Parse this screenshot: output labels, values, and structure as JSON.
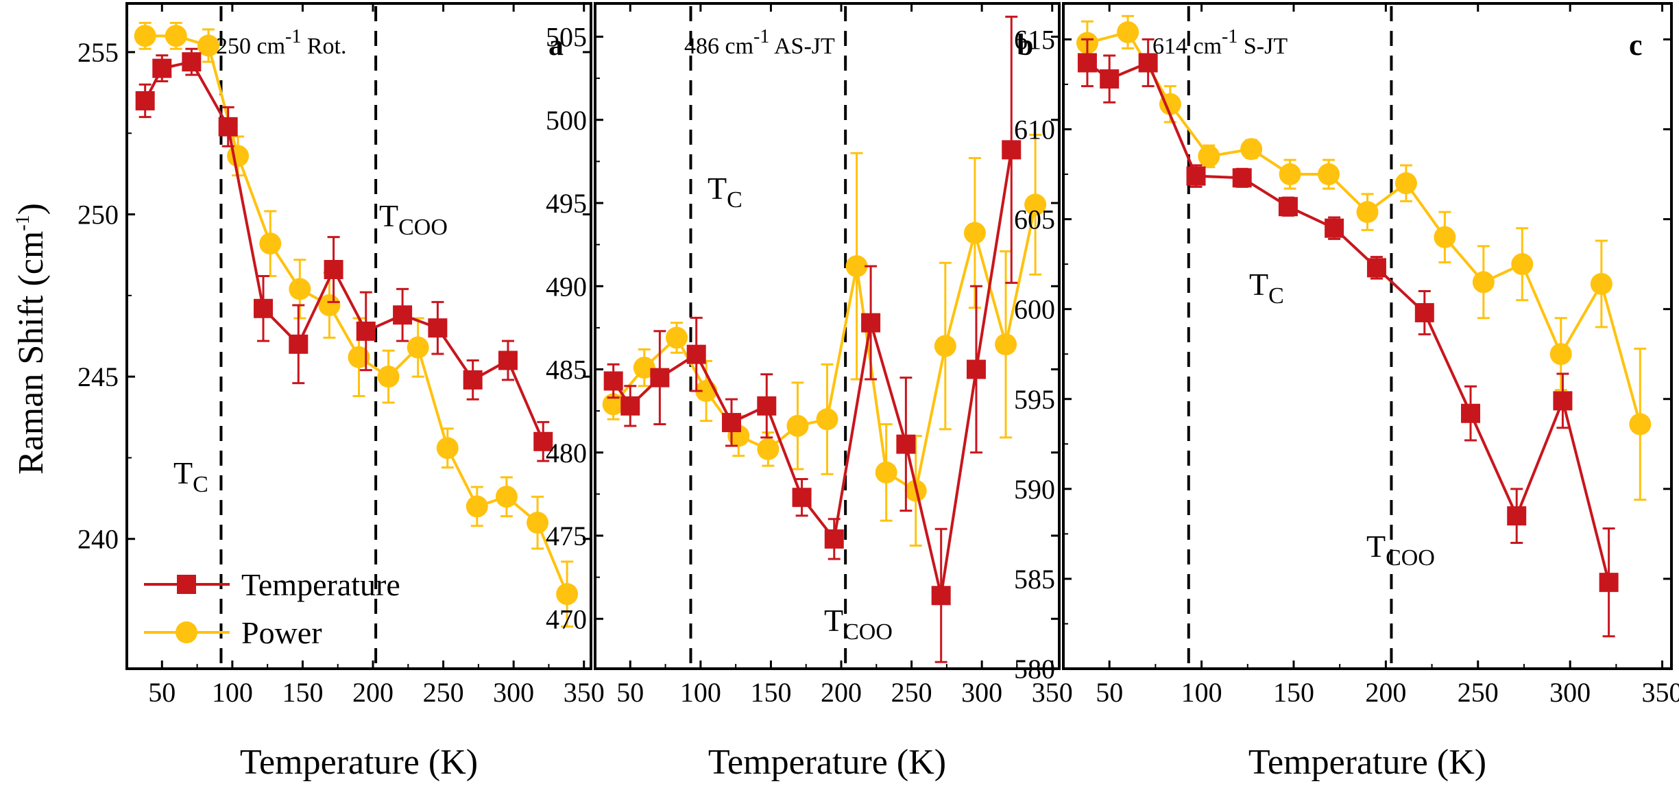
{
  "figure": {
    "ylabel": "Raman Shift (cm",
    "ylabel_sup": "-1",
    "ylabel_close": ")",
    "legend": {
      "temperature": "Temperature",
      "power": "Power"
    },
    "annotations": {
      "tc": "T",
      "tc_sub": "C",
      "tcoo": "T",
      "tcoo_sub": "COO"
    },
    "colors": {
      "temperature": "#c8161d",
      "power": "#ffc20e"
    }
  },
  "chart_data": [
    {
      "type": "line",
      "panel_letter": "a",
      "title_prefix": "250 cm",
      "title_sup": "-1",
      "title_suffix": "Rot.",
      "xlabel": "Temperature (K)",
      "xlim": [
        25,
        355
      ],
      "ylim": [
        236,
        256.5
      ],
      "xticks": [
        50,
        100,
        150,
        200,
        250,
        300,
        350
      ],
      "yticks": [
        240,
        245,
        250,
        255
      ],
      "vlines": [
        92,
        202
      ],
      "series": [
        {
          "name": "Temperature",
          "x": [
            38,
            50,
            71,
            97,
            122,
            147,
            172,
            195,
            221,
            246,
            271,
            296,
            321
          ],
          "y": [
            253.5,
            254.5,
            254.7,
            252.7,
            247.1,
            246.0,
            248.3,
            246.4,
            246.9,
            246.5,
            244.9,
            245.5,
            243.0
          ],
          "err": [
            0.5,
            0.4,
            0.4,
            0.6,
            1.0,
            1.2,
            1.0,
            1.2,
            0.8,
            0.8,
            0.6,
            0.6,
            0.6
          ]
        },
        {
          "name": "Power",
          "x": [
            38,
            60,
            83,
            104,
            127,
            148,
            169,
            190,
            211,
            232,
            253,
            274,
            295,
            317,
            338
          ],
          "y": [
            255.5,
            255.5,
            255.2,
            251.8,
            249.1,
            247.7,
            247.2,
            245.6,
            245.0,
            245.9,
            242.8,
            241.0,
            241.3,
            240.5,
            238.3
          ],
          "err": [
            0.4,
            0.4,
            0.5,
            0.6,
            1.0,
            0.9,
            1.0,
            1.2,
            0.8,
            0.9,
            0.6,
            0.6,
            0.6,
            0.8,
            1.0
          ]
        }
      ]
    },
    {
      "type": "line",
      "panel_letter": "b",
      "title_prefix": "486 cm",
      "title_sup": "-1",
      "title_suffix": "AS-JT",
      "xlabel": "Temperature (K)",
      "xlim": [
        25,
        355
      ],
      "ylim": [
        467,
        507
      ],
      "xticks": [
        50,
        100,
        150,
        200,
        250,
        300,
        350
      ],
      "yticks": [
        470,
        475,
        480,
        485,
        490,
        495,
        500,
        505
      ],
      "vlines": [
        93,
        203
      ],
      "series": [
        {
          "name": "Temperature",
          "x": [
            38,
            50,
            71,
            97,
            122,
            147,
            172,
            195,
            221,
            246,
            271,
            296,
            321
          ],
          "y": [
            484.3,
            482.8,
            484.5,
            485.9,
            481.8,
            482.8,
            477.3,
            474.8,
            487.8,
            480.5,
            471.4,
            485.0,
            498.2
          ],
          "err": [
            1.0,
            1.2,
            2.8,
            2.2,
            1.4,
            1.9,
            1.1,
            1.2,
            3.4,
            4.0,
            4.0,
            5.0,
            8.0
          ]
        },
        {
          "name": "Power",
          "x": [
            38,
            60,
            83,
            104,
            127,
            148,
            169,
            190,
            211,
            232,
            253,
            274,
            295,
            317,
            338
          ],
          "y": [
            482.9,
            485.1,
            486.9,
            483.7,
            481.0,
            480.2,
            481.6,
            482.0,
            491.2,
            478.8,
            477.7,
            486.4,
            493.2,
            486.5,
            494.9
          ],
          "err": [
            0.9,
            1.1,
            0.9,
            1.8,
            1.2,
            1.0,
            2.6,
            3.3,
            6.8,
            2.9,
            3.3,
            5.0,
            4.5,
            5.6,
            4.2
          ]
        }
      ]
    },
    {
      "type": "line",
      "panel_letter": "c",
      "title_prefix": "614 cm",
      "title_sup": "-1",
      "title_suffix": "S-JT",
      "xlabel": "Temperature (K)",
      "xlim": [
        25,
        355
      ],
      "ylim": [
        580,
        617
      ],
      "xticks": [
        50,
        100,
        150,
        200,
        250,
        300,
        350
      ],
      "yticks": [
        580,
        585,
        590,
        595,
        600,
        605,
        610,
        615
      ],
      "vlines": [
        93,
        203
      ],
      "series": [
        {
          "name": "Temperature",
          "x": [
            38,
            50,
            71,
            97,
            122,
            147,
            172,
            195,
            221,
            246,
            271,
            296,
            321
          ],
          "y": [
            613.7,
            612.8,
            613.7,
            607.4,
            607.3,
            605.7,
            604.5,
            602.3,
            599.8,
            594.2,
            588.5,
            594.9,
            584.8
          ],
          "err": [
            1.3,
            1.3,
            1.3,
            0.6,
            0.5,
            0.5,
            0.6,
            0.6,
            1.2,
            1.5,
            1.5,
            1.5,
            3.0
          ]
        },
        {
          "name": "Power",
          "x": [
            38,
            60,
            83,
            104,
            127,
            148,
            169,
            190,
            211,
            232,
            253,
            274,
            295,
            317,
            338
          ],
          "y": [
            614.8,
            615.4,
            611.4,
            608.5,
            608.9,
            607.5,
            607.5,
            605.4,
            607.0,
            604.0,
            601.5,
            602.5,
            597.5,
            601.4,
            593.6
          ],
          "err": [
            1.2,
            0.9,
            1.0,
            0.6,
            0.5,
            0.8,
            0.8,
            1.0,
            1.0,
            1.4,
            2.0,
            2.0,
            2.0,
            2.4,
            4.2
          ]
        }
      ]
    }
  ]
}
